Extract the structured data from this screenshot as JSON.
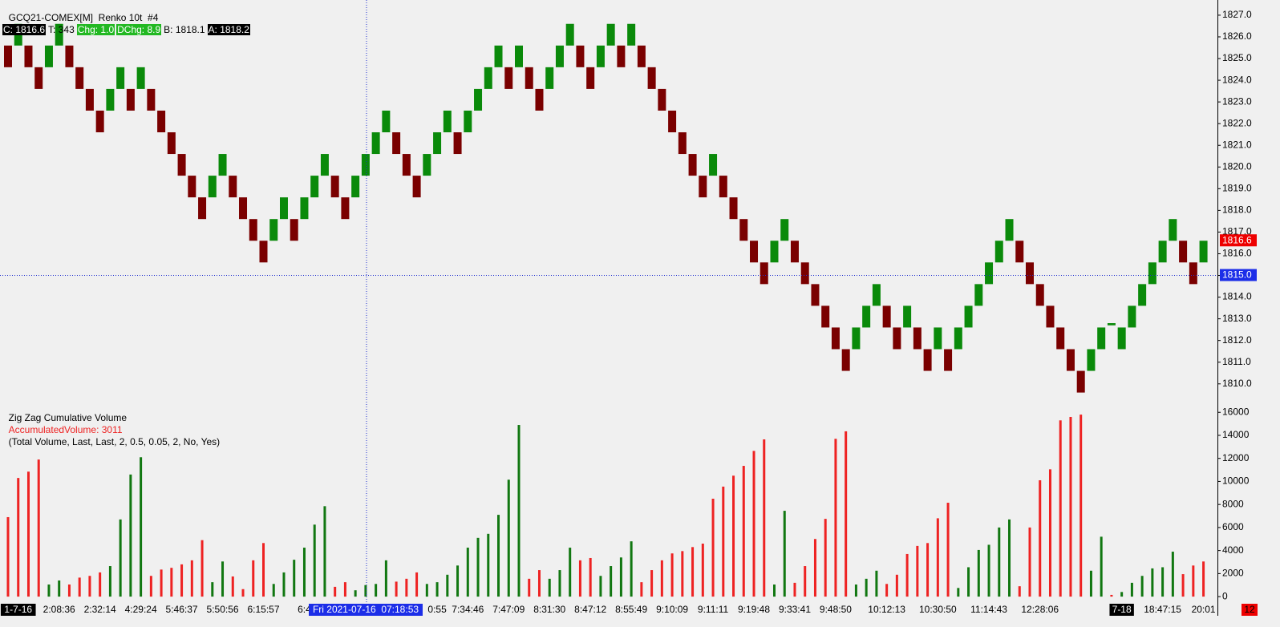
{
  "chart_data": [
    {
      "type": "renko",
      "title": "GCQ21-COMEX[M]  Renko 10t  #4",
      "stats": [
        {
          "text": "C: 1816.6",
          "background": "#000000"
        },
        {
          "text": "T: 343"
        },
        {
          "text": "Chg: 1.0",
          "background": "#22b822"
        },
        {
          "text": "DChg: 8.9",
          "background": "#22b822"
        },
        {
          "text": "B: 1818.1"
        },
        {
          "text": "A: 1818.2",
          "background": "#000000"
        }
      ],
      "up_color": "#0a8a0a",
      "down_color": "#7a0000",
      "open": [
        1825.6,
        1825.6,
        1825.6,
        1824.6,
        1824.6,
        1825.6,
        1825.6,
        1824.6,
        1823.6,
        1822.6,
        1822.6,
        1823.6,
        1823.6,
        1823.6,
        1823.6,
        1822.6,
        1821.6,
        1820.6,
        1819.6,
        1818.6,
        1818.6,
        1819.6,
        1819.6,
        1818.6,
        1817.6,
        1816.6,
        1816.6,
        1817.6,
        1817.6,
        1817.6,
        1818.6,
        1819.6,
        1819.6,
        1818.6,
        1818.6,
        1819.6,
        1820.6,
        1821.6,
        1821.6,
        1820.6,
        1819.6,
        1819.6,
        1820.6,
        1821.6,
        1821.6,
        1821.6,
        1822.6,
        1823.6,
        1824.6,
        1824.6,
        1824.6,
        1824.6,
        1823.6,
        1823.6,
        1824.6,
        1825.6,
        1825.6,
        1824.6,
        1824.6,
        1825.6,
        1825.6,
        1825.6,
        1825.6,
        1824.6,
        1823.6,
        1822.6,
        1821.6,
        1820.6,
        1819.6,
        1819.6,
        1819.6,
        1818.6,
        1817.6,
        1816.6,
        1815.6,
        1815.6,
        1816.6,
        1816.6,
        1815.6,
        1814.6,
        1813.6,
        1812.6,
        1811.6,
        1811.6,
        1812.6,
        1813.6,
        1813.6,
        1812.6,
        1812.6,
        1812.6,
        1811.6,
        1811.6,
        1811.6,
        1811.6,
        1812.6,
        1813.6,
        1814.6,
        1815.6,
        1816.6,
        1816.6,
        1815.6,
        1814.6,
        1813.6,
        1812.6,
        1811.6,
        1810.6,
        1810.6,
        1811.6,
        1812.7,
        1811.6,
        1812.6,
        1813.6,
        1814.6,
        1815.6,
        1816.6,
        1816.6,
        1815.6,
        1815.6
      ],
      "close": [
        1824.6,
        1826.6,
        1824.6,
        1823.6,
        1825.6,
        1826.6,
        1824.6,
        1823.6,
        1822.6,
        1821.6,
        1823.6,
        1824.6,
        1822.6,
        1824.6,
        1822.6,
        1821.6,
        1820.6,
        1819.6,
        1818.6,
        1817.6,
        1819.6,
        1820.6,
        1818.6,
        1817.6,
        1816.6,
        1815.6,
        1817.6,
        1818.6,
        1816.6,
        1818.6,
        1819.6,
        1820.6,
        1818.6,
        1817.6,
        1819.6,
        1820.6,
        1821.6,
        1822.6,
        1820.6,
        1819.6,
        1818.6,
        1820.6,
        1821.6,
        1822.6,
        1820.6,
        1822.6,
        1823.6,
        1824.6,
        1825.6,
        1823.6,
        1825.6,
        1823.6,
        1822.6,
        1824.6,
        1825.6,
        1826.6,
        1824.6,
        1823.6,
        1825.6,
        1826.6,
        1824.6,
        1826.6,
        1824.6,
        1823.6,
        1822.6,
        1821.6,
        1820.6,
        1819.6,
        1818.6,
        1820.6,
        1818.6,
        1817.6,
        1816.6,
        1815.6,
        1814.6,
        1816.6,
        1817.6,
        1815.6,
        1814.6,
        1813.6,
        1812.6,
        1811.6,
        1810.6,
        1812.6,
        1813.6,
        1814.6,
        1812.6,
        1811.6,
        1813.6,
        1811.6,
        1810.6,
        1812.6,
        1810.6,
        1812.6,
        1813.6,
        1814.6,
        1815.6,
        1816.6,
        1817.6,
        1815.6,
        1814.6,
        1813.6,
        1812.6,
        1811.6,
        1810.6,
        1809.6,
        1811.6,
        1812.6,
        1812.8,
        1812.6,
        1813.6,
        1814.6,
        1815.6,
        1816.6,
        1817.6,
        1815.6,
        1814.6,
        1816.6
      ],
      "last": 1816.6,
      "crosshair": {
        "label": "Fri 2021-07-16  07:18:53",
        "value": 1815,
        "value_label": "1815.0"
      },
      "ylim": [
        1809.4,
        1827.7
      ],
      "yticks": [
        {
          "value": 1810,
          "label": "1810.0"
        },
        {
          "value": 1811,
          "label": "1811.0"
        },
        {
          "value": 1812,
          "label": "1812.0"
        },
        {
          "value": 1813,
          "label": "1813.0"
        },
        {
          "value": 1814,
          "label": "1814.0"
        },
        {
          "value": 1815,
          "label": "1815.0"
        },
        {
          "value": 1816,
          "label": "1816.0"
        },
        {
          "value": 1817,
          "label": "1817.0"
        },
        {
          "value": 1818,
          "label": "1818.0"
        },
        {
          "value": 1819,
          "label": "1819.0"
        },
        {
          "value": 1820,
          "label": "1820.0"
        },
        {
          "value": 1821,
          "label": "1821.0"
        },
        {
          "value": 1822,
          "label": "1822.0"
        },
        {
          "value": 1823,
          "label": "1823.0"
        },
        {
          "value": 1824,
          "label": "1824.0"
        },
        {
          "value": 1825,
          "label": "1825.0"
        },
        {
          "value": 1826,
          "label": "1826.0"
        },
        {
          "value": 1827,
          "label": "1827.0"
        }
      ]
    },
    {
      "type": "bar",
      "title": "Zig Zag Cumulative Volume",
      "subtitle": "AccumulatedVolume: 3011",
      "parameters": "(Total Volume, Last, Last, 2, 0.5, 0.05, 2, No, Yes)",
      "badge": "12",
      "categories": [
        null,
        "1-7-16",
        null,
        null,
        null,
        "2:08:36",
        null,
        null,
        null,
        "2:32:14",
        null,
        null,
        null,
        "4:29:24",
        null,
        null,
        null,
        "5:46:37",
        null,
        null,
        null,
        "5:50:56",
        null,
        null,
        null,
        "6:15:57",
        null,
        null,
        null,
        "6:4",
        null,
        null,
        null,
        null,
        null,
        null,
        null,
        null,
        null,
        null,
        null,
        null,
        "0:55",
        null,
        null,
        "7:34:46",
        null,
        null,
        null,
        "7:47:09",
        null,
        null,
        null,
        "8:31:30",
        null,
        null,
        null,
        "8:47:12",
        null,
        null,
        null,
        "8:55:49",
        null,
        null,
        null,
        "9:10:09",
        null,
        null,
        null,
        "9:11:11",
        null,
        null,
        null,
        "9:19:48",
        null,
        null,
        null,
        "9:33:41",
        null,
        null,
        null,
        "9:48:50",
        null,
        null,
        null,
        null,
        "10:12:13",
        null,
        null,
        null,
        null,
        "10:30:50",
        null,
        null,
        null,
        null,
        "11:14:43",
        null,
        null,
        null,
        null,
        "12:28:06",
        null,
        null,
        null,
        null,
        null,
        null,
        null,
        "7-18",
        null,
        null,
        null,
        "18:47:15",
        null,
        null,
        null,
        "20:01"
      ],
      "values": [
        6900,
        10300,
        10850,
        11900,
        1050,
        1400,
        1050,
        1650,
        1800,
        2100,
        2650,
        6700,
        10600,
        12100,
        1800,
        2350,
        2500,
        2800,
        3150,
        4900,
        1250,
        3050,
        1750,
        650,
        3150,
        4650,
        1100,
        2100,
        3200,
        4250,
        6250,
        7850,
        850,
        1250,
        550,
        1000,
        1100,
        3150,
        1300,
        1550,
        2100,
        1100,
        1250,
        1900,
        2700,
        4250,
        5100,
        5450,
        7100,
        10150,
        14900,
        1550,
        2300,
        1550,
        2300,
        4250,
        3150,
        3350,
        1800,
        2650,
        3400,
        4800,
        1250,
        2300,
        3150,
        3750,
        3950,
        4300,
        4600,
        8500,
        9550,
        10500,
        11350,
        12650,
        13650,
        1050,
        7450,
        1200,
        2650,
        5000,
        6750,
        13700,
        14350,
        1050,
        1550,
        2250,
        1100,
        1900,
        3700,
        4400,
        4650,
        6800,
        8150,
        750,
        2550,
        4050,
        4500,
        6000,
        6700,
        900,
        6000,
        10100,
        11050,
        15300,
        15600,
        15800,
        2250,
        5200,
        150,
        400,
        1200,
        1800,
        2450,
        2550,
        3900,
        1950,
        2700,
        3050
      ],
      "colors": [
        "#e22",
        "#e22",
        "#e22",
        "#e22",
        "#171",
        "#171",
        "#e22",
        "#e22",
        "#e22",
        "#e22",
        "#171",
        "#171",
        "#171",
        "#171",
        "#e22",
        "#e22",
        "#e22",
        "#e22",
        "#e22",
        "#e22",
        "#171",
        "#171",
        "#e22",
        "#e22",
        "#e22",
        "#e22",
        "#171",
        "#171",
        "#171",
        "#171",
        "#171",
        "#171",
        "#e22",
        "#e22",
        "#171",
        "#171",
        "#171",
        "#171",
        "#e22",
        "#e22",
        "#e22",
        "#171",
        "#171",
        "#171",
        "#171",
        "#171",
        "#171",
        "#171",
        "#171",
        "#171",
        "#171",
        "#e22",
        "#e22",
        "#171",
        "#171",
        "#171",
        "#e22",
        "#e22",
        "#171",
        "#171",
        "#171",
        "#171",
        "#e22",
        "#e22",
        "#e22",
        "#e22",
        "#e22",
        "#e22",
        "#e22",
        "#e22",
        "#e22",
        "#e22",
        "#e22",
        "#e22",
        "#e22",
        "#171",
        "#171",
        "#e22",
        "#e22",
        "#e22",
        "#e22",
        "#e22",
        "#e22",
        "#171",
        "#171",
        "#171",
        "#e22",
        "#e22",
        "#e22",
        "#e22",
        "#e22",
        "#e22",
        "#e22",
        "#171",
        "#171",
        "#171",
        "#171",
        "#171",
        "#171",
        "#e22",
        "#e22",
        "#e22",
        "#e22",
        "#e22",
        "#e22",
        "#e22",
        "#171",
        "#171",
        "#e22",
        "#171",
        "#171",
        "#171",
        "#171",
        "#171",
        "#171",
        "#e22",
        "#e22",
        "#e22"
      ],
      "ylim": [
        -550,
        17200
      ],
      "yticks": [
        0,
        2000,
        4000,
        6000,
        8000,
        10000,
        12000,
        14000,
        16000
      ]
    }
  ]
}
